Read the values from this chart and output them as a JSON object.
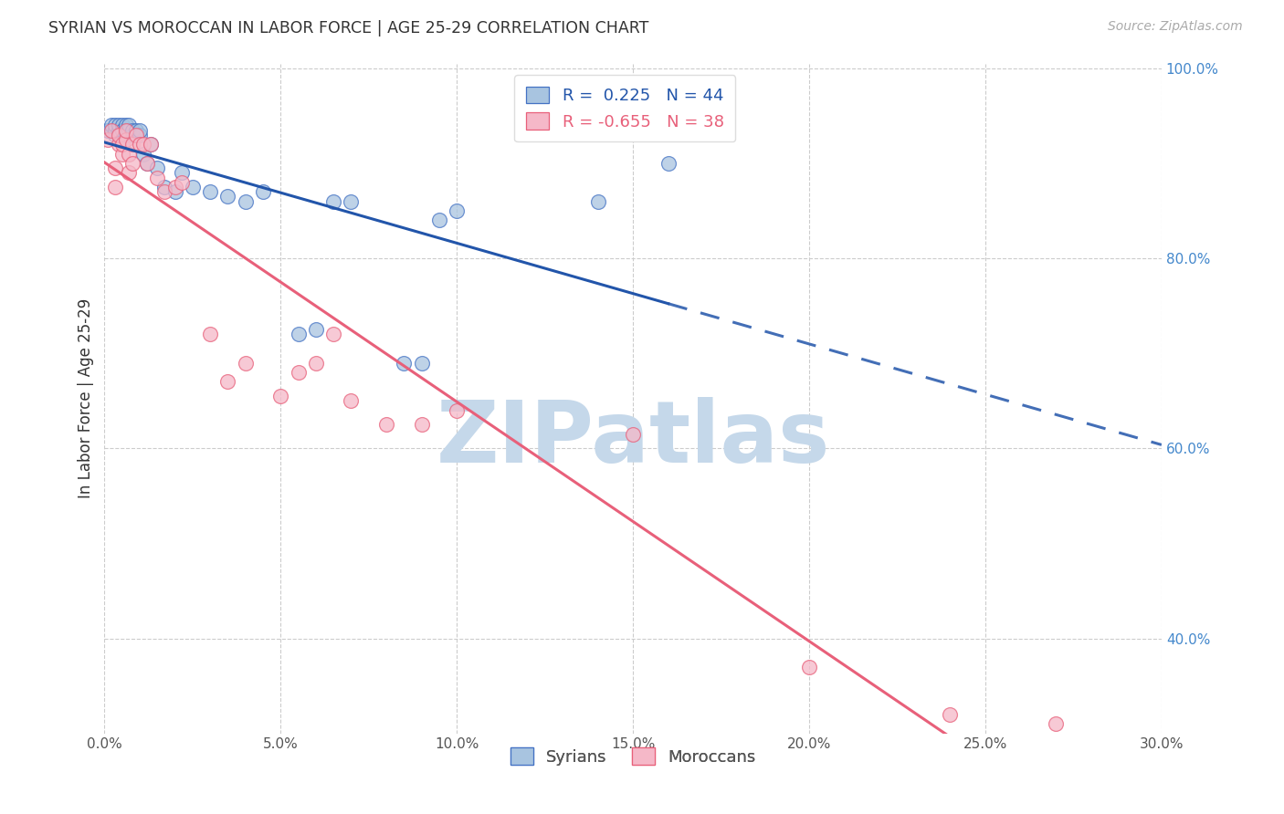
{
  "title": "SYRIAN VS MOROCCAN IN LABOR FORCE | AGE 25-29 CORRELATION CHART",
  "source": "Source: ZipAtlas.com",
  "ylabel": "In Labor Force | Age 25-29",
  "xlim": [
    0.0,
    0.3
  ],
  "ylim": [
    0.3,
    1.005
  ],
  "xticks": [
    0.0,
    0.05,
    0.1,
    0.15,
    0.2,
    0.25,
    0.3
  ],
  "yticks": [
    0.4,
    0.6,
    0.8,
    1.0
  ],
  "xticklabels": [
    "0.0%",
    "5.0%",
    "10.0%",
    "15.0%",
    "20.0%",
    "25.0%",
    "30.0%"
  ],
  "yticklabels_right": [
    "40.0%",
    "60.0%",
    "80.0%",
    "100.0%"
  ],
  "grid_yticks": [
    0.4,
    0.6,
    0.8,
    1.0
  ],
  "syrian_color": "#a8c4e0",
  "moroccan_color": "#f5b8c8",
  "syrian_edge_color": "#4472c4",
  "moroccan_edge_color": "#e8607a",
  "syrian_line_color": "#2255aa",
  "moroccan_line_color": "#e8607a",
  "legend_text_syrian": "R =  0.225   N = 44",
  "legend_text_moroccan": "R = -0.655   N = 38",
  "watermark": "ZIPatlas",
  "watermark_color": "#c5d8ea",
  "syrian_x": [
    0.001,
    0.002,
    0.002,
    0.003,
    0.003,
    0.003,
    0.004,
    0.004,
    0.004,
    0.005,
    0.005,
    0.005,
    0.006,
    0.006,
    0.006,
    0.007,
    0.007,
    0.008,
    0.008,
    0.009,
    0.01,
    0.01,
    0.011,
    0.012,
    0.013,
    0.015,
    0.017,
    0.02,
    0.022,
    0.025,
    0.03,
    0.035,
    0.04,
    0.045,
    0.055,
    0.06,
    0.065,
    0.07,
    0.085,
    0.09,
    0.095,
    0.1,
    0.14,
    0.16
  ],
  "syrian_y": [
    0.935,
    0.935,
    0.94,
    0.93,
    0.935,
    0.94,
    0.93,
    0.935,
    0.94,
    0.935,
    0.94,
    0.935,
    0.93,
    0.935,
    0.94,
    0.935,
    0.94,
    0.93,
    0.935,
    0.935,
    0.93,
    0.935,
    0.91,
    0.9,
    0.92,
    0.895,
    0.875,
    0.87,
    0.89,
    0.875,
    0.87,
    0.865,
    0.86,
    0.87,
    0.72,
    0.725,
    0.86,
    0.86,
    0.69,
    0.69,
    0.84,
    0.85,
    0.86,
    0.9
  ],
  "moroccan_x": [
    0.001,
    0.002,
    0.003,
    0.003,
    0.004,
    0.004,
    0.005,
    0.005,
    0.006,
    0.006,
    0.007,
    0.007,
    0.008,
    0.008,
    0.009,
    0.01,
    0.011,
    0.012,
    0.013,
    0.015,
    0.017,
    0.02,
    0.022,
    0.03,
    0.035,
    0.04,
    0.05,
    0.055,
    0.06,
    0.065,
    0.07,
    0.08,
    0.09,
    0.1,
    0.15,
    0.2,
    0.24,
    0.27
  ],
  "moroccan_y": [
    0.925,
    0.935,
    0.875,
    0.895,
    0.92,
    0.93,
    0.91,
    0.92,
    0.925,
    0.935,
    0.89,
    0.91,
    0.92,
    0.9,
    0.93,
    0.92,
    0.92,
    0.9,
    0.92,
    0.885,
    0.87,
    0.875,
    0.88,
    0.72,
    0.67,
    0.69,
    0.655,
    0.68,
    0.69,
    0.72,
    0.65,
    0.625,
    0.625,
    0.64,
    0.615,
    0.37,
    0.32,
    0.31
  ]
}
